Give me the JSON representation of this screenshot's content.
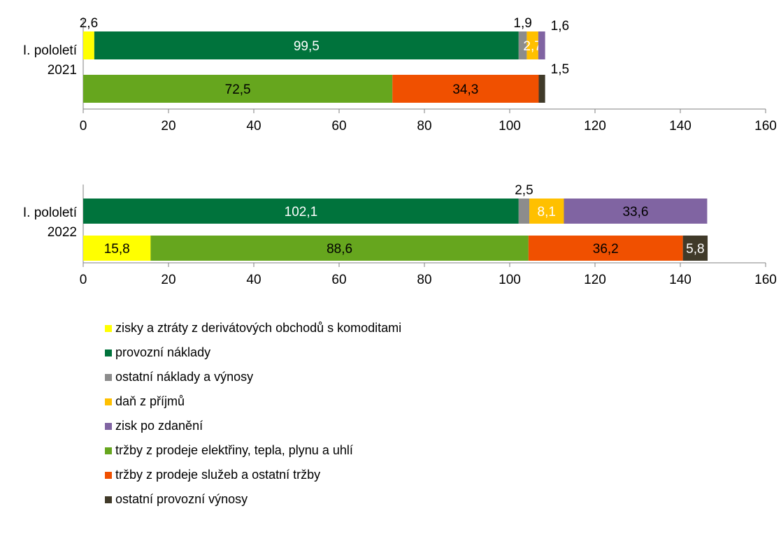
{
  "chart_data": {
    "type": "bar",
    "orientation": "horizontal",
    "stacked": true,
    "xlim": [
      0,
      160
    ],
    "ticks": [
      "0",
      "20",
      "40",
      "60",
      "80",
      "100",
      "120",
      "140",
      "160"
    ],
    "legend_position": "bottom",
    "series_defs": [
      {
        "key": "derivaty",
        "name": "zisky a ztráty z derivátových obchodů s komoditami",
        "color": "#ffff00"
      },
      {
        "key": "provozni_naklady",
        "name": "provozní náklady",
        "color": "#00733c"
      },
      {
        "key": "ostatni_naklady",
        "name": "ostatní náklady a výnosy",
        "color": "#8c8c8c"
      },
      {
        "key": "dan",
        "name": "daň z příjmů",
        "color": "#ffc000"
      },
      {
        "key": "zisk",
        "name": "zisk po zdanění",
        "color": "#8064a2"
      },
      {
        "key": "trzby_energie",
        "name": "tržby z prodeje elektřiny, tepla, plynu a uhlí",
        "color": "#66a61e"
      },
      {
        "key": "trzby_sluzby",
        "name": "tržby z prodeje služeb a ostatní tržby",
        "color": "#f05000"
      },
      {
        "key": "ostatni_vynosy",
        "name": "ostatní provozní výnosy",
        "color": "#403a29"
      }
    ],
    "panels": [
      {
        "category_line1": "I. pololetí",
        "category_line2": "2021",
        "bars": [
          {
            "segments": [
              {
                "series": "derivaty",
                "value": 2.6,
                "label": "2,6",
                "label_pos": "above"
              },
              {
                "series": "provozni_naklady",
                "value": 99.5,
                "label": "99,5",
                "label_pos": "inside",
                "label_color": "#ffffff"
              },
              {
                "series": "ostatni_naklady",
                "value": 1.9,
                "label": "1,9",
                "label_pos": "above"
              },
              {
                "series": "dan",
                "value": 2.7,
                "label": "2,7",
                "label_pos": "inside",
                "label_color": "#ffffff"
              },
              {
                "series": "zisk",
                "value": 1.6,
                "label": "1,6",
                "label_pos": "above-right"
              }
            ]
          },
          {
            "segments": [
              {
                "series": "trzby_energie",
                "value": 72.5,
                "label": "72,5",
                "label_pos": "inside",
                "label_color": "#000000"
              },
              {
                "series": "trzby_sluzby",
                "value": 34.3,
                "label": "34,3",
                "label_pos": "inside",
                "label_color": "#000000"
              },
              {
                "series": "ostatni_vynosy",
                "value": 1.5,
                "label": "1,5",
                "label_pos": "above-right"
              }
            ]
          }
        ]
      },
      {
        "category_line1": "I. pololetí",
        "category_line2": "2022",
        "bars": [
          {
            "segments": [
              {
                "series": "provozni_naklady",
                "value": 102.1,
                "label": "102,1",
                "label_pos": "inside",
                "label_color": "#ffffff"
              },
              {
                "series": "ostatni_naklady",
                "value": 2.5,
                "label": "2,5",
                "label_pos": "above"
              },
              {
                "series": "dan",
                "value": 8.1,
                "label": "8,1",
                "label_pos": "inside",
                "label_color": "#ffffff"
              },
              {
                "series": "zisk",
                "value": 33.6,
                "label": "33,6",
                "label_pos": "inside",
                "label_color": "#000000"
              }
            ]
          },
          {
            "segments": [
              {
                "series": "derivaty",
                "value": 15.8,
                "label": "15,8",
                "label_pos": "inside",
                "label_color": "#000000"
              },
              {
                "series": "trzby_energie",
                "value": 88.6,
                "label": "88,6",
                "label_pos": "inside",
                "label_color": "#000000"
              },
              {
                "series": "trzby_sluzby",
                "value": 36.2,
                "label": "36,2",
                "label_pos": "inside",
                "label_color": "#000000"
              },
              {
                "series": "ostatni_vynosy",
                "value": 5.8,
                "label": "5,8",
                "label_pos": "inside",
                "label_color": "#ffffff"
              }
            ]
          }
        ]
      }
    ]
  }
}
